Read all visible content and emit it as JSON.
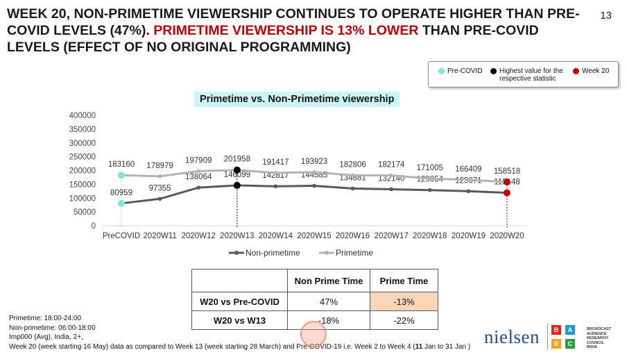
{
  "page": {
    "headline_part1": "WEEK 20, NON-PRIMETIME VIEWERSHIP CONTINUES TO OPERATE HIGHER THAN PRE-COVID LEVELS (47%). ",
    "headline_red": "PRIMETIME VIEWERSHIP IS 13% LOWER",
    "headline_part2": " THAN PRE-COVID LEVELS (EFFECT OF NO ORIGINAL PROGRAMMING)",
    "page_number": "13"
  },
  "legend_box": {
    "items": [
      {
        "label": "Pre-COVID",
        "color": "#7fe5dc"
      },
      {
        "label": "Highest value for the respective statistic",
        "color": "#000000"
      },
      {
        "label": "Week 20",
        "color": "#c00000"
      }
    ]
  },
  "chart_data": {
    "type": "line",
    "title": "Primetime vs. Non-Primetime viewership",
    "categories": [
      "PreCOVID",
      "2020W11",
      "2020W12",
      "2020W13",
      "2020W14",
      "2020W15",
      "2020W16",
      "2020W17",
      "2020W18",
      "2020W19",
      "2020W20"
    ],
    "series": [
      {
        "name": "Non-primetime",
        "color": "#595959",
        "values": [
          80959,
          97355,
          138064,
          146099,
          142817,
          144585,
          134881,
          132140,
          129054,
          125071,
          119148
        ]
      },
      {
        "name": "Primetime",
        "color": "#b3b3b3",
        "values": [
          183160,
          178979,
          197909,
          201958,
          191417,
          193923,
          182806,
          182174,
          171005,
          166409,
          158518
        ]
      }
    ],
    "y_ticks": [
      "0",
      "50000",
      "100000",
      "150000",
      "200000",
      "250000",
      "300000",
      "350000",
      "400000"
    ],
    "ylim": [
      0,
      400000
    ],
    "highlights": {
      "pre_covid_index": 0,
      "highest_index": 3,
      "week20_index": 10
    },
    "legend_position": "bottom"
  },
  "comparison_table": {
    "headers": [
      "",
      "Non Prime Time",
      "Prime Time"
    ],
    "rows": [
      [
        "W20 vs Pre-COVID",
        "47%",
        "-13%"
      ],
      [
        "W20 vs W13",
        "-18%",
        "-22%"
      ]
    ],
    "highlight_color": "#fbd5b5"
  },
  "notes": {
    "line1": "Primetime: 18:00-24:00",
    "line2": "Non-primetime: 06:00-18:00",
    "line3": "Imp000 (Avg), India, 2+,",
    "line4_a": "Week 20 (week starting 16 May) data as compared to Week 13 (week starting 28 March) and  Pre-COVID-19 i.e. Week 2 to Week 4 (",
    "line4_b": "11",
    "line4_c": " Jan to 31 Jan )"
  },
  "logos": {
    "nielsen": "nielsen",
    "barc_letters": [
      "B",
      "A",
      "R",
      "C"
    ],
    "barc_colors": [
      "#e2231a",
      "#1f9ad6",
      "#f7a21b",
      "#2e9e44"
    ],
    "barc_text": [
      "BROADCAST",
      "AUDIENCE",
      "RESEARCH",
      "COUNCIL",
      "INDIA"
    ]
  }
}
